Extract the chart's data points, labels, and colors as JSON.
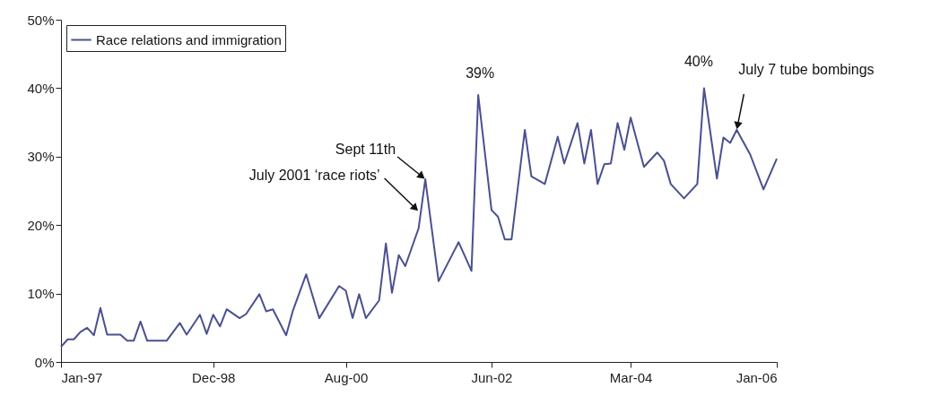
{
  "chart_data": {
    "type": "line",
    "x": [
      "1997-01",
      "1997-02",
      "1997-03",
      "1997-04",
      "1997-05",
      "1997-06",
      "1997-07",
      "1997-08",
      "1997-10",
      "1997-11",
      "1997-12",
      "1998-01",
      "1998-02",
      "1998-05",
      "1998-07",
      "1998-08",
      "1998-10",
      "1998-11",
      "1998-12",
      "1999-01",
      "1999-02",
      "1999-04",
      "1999-05",
      "1999-07",
      "1999-08",
      "1999-09",
      "1999-11",
      "1999-12",
      "2000-02",
      "2000-04",
      "2000-07",
      "2000-08",
      "2000-09",
      "2000-10",
      "2000-11",
      "2001-01",
      "2001-02",
      "2001-03",
      "2001-04",
      "2001-05",
      "2001-07",
      "2001-08",
      "2001-10",
      "2002-01",
      "2002-03",
      "2002-04",
      "2002-06",
      "2002-07",
      "2002-08",
      "2002-09",
      "2002-11",
      "2002-12",
      "2003-02",
      "2003-04",
      "2003-05",
      "2003-07",
      "2003-08",
      "2003-09",
      "2003-10",
      "2003-11",
      "2003-12",
      "2004-01",
      "2004-02",
      "2004-03",
      "2004-05",
      "2004-07",
      "2004-08",
      "2004-09",
      "2004-11",
      "2005-01",
      "2005-02",
      "2005-04",
      "2005-05",
      "2005-06",
      "2005-07",
      "2005-09",
      "2005-11",
      "2006-01"
    ],
    "series": [
      {
        "name": "Race relations and immigration",
        "color": "#4a5090",
        "values": [
          2.2,
          3.3,
          3.3,
          4.4,
          5.0,
          3.9,
          7.9,
          4.0,
          4.0,
          3.1,
          3.1,
          5.9,
          3.1,
          3.1,
          5.7,
          4.0,
          6.9,
          4.1,
          6.9,
          5.2,
          7.7,
          6.4,
          7.0,
          9.9,
          7.4,
          7.7,
          3.9,
          7.4,
          12.8,
          6.4,
          11.1,
          10.4,
          6.4,
          9.9,
          6.4,
          9.0,
          17.3,
          10.1,
          15.6,
          14.0,
          19.5,
          26.7,
          11.8,
          17.5,
          13.3,
          39,
          22.2,
          21.2,
          17.9,
          17.9,
          33.9,
          27.1,
          26.0,
          32.9,
          29.0,
          34.9,
          29.0,
          33.9,
          26.0,
          28.9,
          29.0,
          34.9,
          31.0,
          35.7,
          28.5,
          30.6,
          29.4,
          26.0,
          23.9,
          26.0,
          40,
          26.8,
          32.8,
          32.0,
          33.9,
          30.3,
          25.2,
          29.7
        ]
      }
    ],
    "ylim": [
      0,
      50
    ],
    "yticks": [
      {
        "value": 0,
        "label": "0%"
      },
      {
        "value": 10,
        "label": "10%"
      },
      {
        "value": 20,
        "label": "20%"
      },
      {
        "value": 30,
        "label": "30%"
      },
      {
        "value": 40,
        "label": "40%"
      },
      {
        "value": 50,
        "label": "50%"
      }
    ],
    "xlim": [
      "1997-01",
      "2006-01"
    ],
    "xticks": [
      {
        "value": "1997-01",
        "label": "Jan-97"
      },
      {
        "value": "1998-12",
        "label": "Dec-98"
      },
      {
        "value": "2000-08",
        "label": "Aug-00"
      },
      {
        "value": "2002-06",
        "label": "Jun-02"
      },
      {
        "value": "2004-03",
        "label": "Mar-04"
      },
      {
        "value": "2006-01",
        "label": "Jan-06"
      }
    ],
    "annotations": [
      {
        "text": "July 2001 ‘race riots’",
        "x": "2001-07",
        "y": 22
      },
      {
        "text": "Sept 11th",
        "x": "2001-08",
        "y": 26.7
      },
      {
        "text": "39%",
        "x": "2002-04",
        "y": 39
      },
      {
        "text": "40%",
        "x": "2005-02",
        "y": 40
      },
      {
        "text": "July 7 tube bombings",
        "x": "2005-07",
        "y": 33.9
      }
    ],
    "grid": false,
    "legend": "top left",
    "marker": "none",
    "line_style": "solid"
  }
}
